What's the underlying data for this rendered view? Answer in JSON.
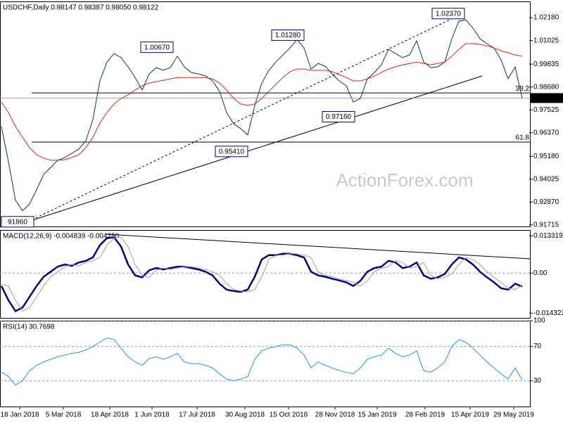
{
  "watermark": "ActionForex.com",
  "chart_data": [
    {
      "type": "line",
      "title": "USDCHF,Daily  0.98147 0.98387 0.98050 0.98122",
      "x": [
        0,
        5,
        10,
        15,
        20,
        25,
        30,
        35,
        40,
        45,
        50,
        55,
        60,
        65,
        70,
        75,
        80,
        85,
        90,
        95,
        100,
        105,
        110,
        115,
        120,
        125,
        130,
        135,
        140,
        145,
        150,
        155,
        160,
        165,
        170,
        175,
        180,
        185,
        190,
        195,
        200,
        205,
        210,
        215,
        220,
        225,
        230,
        235,
        240,
        245,
        250,
        255,
        260,
        265,
        270,
        275,
        280,
        285,
        290,
        295,
        300,
        305,
        310,
        315,
        320,
        325,
        330,
        335,
        340,
        345,
        350,
        355,
        360,
        365,
        370
      ],
      "series": [
        {
          "color": "#0b3d2e",
          "values": [
            0.9668,
            0.9491,
            0.9296,
            0.9243,
            0.9278,
            0.9349,
            0.9427,
            0.9462,
            0.9498,
            0.9512,
            0.9533,
            0.9555,
            0.9597,
            0.9704,
            0.9899,
            0.9994,
            1.0037,
            1.0016,
            0.997,
            0.9916,
            0.9853,
            0.9934,
            0.9966,
            0.9952,
            0.9966,
            1.0023,
            0.997,
            0.9941,
            0.9934,
            0.9924,
            0.9899,
            0.9846,
            0.9739,
            0.9682,
            0.9658,
            0.9626,
            0.9775,
            0.9888,
            0.9952,
            0.9994,
            1.003,
            1.0065,
            1.0108,
            1.0065,
            0.9959,
            0.9987,
            0.9973,
            0.9934,
            0.9899,
            0.9874,
            0.9792,
            0.981,
            0.9909,
            0.9941,
            0.998,
            1.0058,
            1.0037,
            1.0016,
            1.003,
            1.0101,
            0.9994,
            0.9966,
            0.997,
            0.9994,
            1.0112,
            1.02,
            1.0207,
            1.0165,
            1.0112,
            1.0087,
            1.0065,
            1.0005,
            0.9909,
            0.997,
            0.981
          ]
        },
        {
          "color": "#e0201b",
          "values": [
            0.9792,
            0.9739,
            0.9668,
            0.9615,
            0.9562,
            0.9526,
            0.9509,
            0.9498,
            0.9498,
            0.9501,
            0.9512,
            0.9526,
            0.9562,
            0.9615,
            0.9686,
            0.9739,
            0.9782,
            0.981,
            0.9828,
            0.9853,
            0.9874,
            0.9888,
            0.9895,
            0.9902,
            0.9909,
            0.9916,
            0.9916,
            0.9916,
            0.9916,
            0.9916,
            0.9909,
            0.9888,
            0.9853,
            0.981,
            0.9782,
            0.9775,
            0.9782,
            0.981,
            0.9846,
            0.9881,
            0.9916,
            0.9945,
            0.9959,
            0.9959,
            0.9952,
            0.9952,
            0.9952,
            0.9945,
            0.9931,
            0.9916,
            0.9899,
            0.9899,
            0.9909,
            0.9923,
            0.9941,
            0.9959,
            0.997,
            0.998,
            0.9987,
            0.9994,
            0.9987,
            0.998,
            0.9987,
            0.9994,
            1.0023,
            1.0058,
            1.0087,
            1.0087,
            1.0083,
            1.0076,
            1.0065,
            1.0051,
            1.0041,
            1.003,
            1.0023
          ]
        }
      ],
      "xlim": [
        -1,
        376
      ],
      "ylim": [
        0.9164,
        1.03
      ],
      "yticks": [
        {
          "value": 1.0218,
          "label": "1.02180"
        },
        {
          "value": 1.01025,
          "label": "1.01025"
        },
        {
          "value": 0.99835,
          "label": "0.99835"
        },
        {
          "value": 0.9868,
          "label": "0.98680"
        },
        {
          "value": 0.97525,
          "label": "0.97525"
        },
        {
          "value": 0.9637,
          "label": "0.96370"
        },
        {
          "value": 0.9518,
          "label": "0.95180"
        },
        {
          "value": 0.94025,
          "label": "0.94025"
        },
        {
          "value": 0.9287,
          "label": "0.92870"
        },
        {
          "value": 0.91715,
          "label": "0.91715"
        }
      ],
      "last": 0.98122,
      "levels": [
        {
          "label": "38.2",
          "y": 0.9838
        },
        {
          "label": "61.8",
          "y": 0.959
        }
      ],
      "annotations": [
        {
          "x": 23,
          "y": 0.9186,
          "label": "91860"
        },
        {
          "x": 122,
          "y": 1.0067,
          "label": "1.00670"
        },
        {
          "x": 175,
          "y": 0.9541,
          "label": "0.95410"
        },
        {
          "x": 215,
          "y": 1.0128,
          "label": "1.01280"
        },
        {
          "x": 251,
          "y": 0.9716,
          "label": "0.97160"
        },
        {
          "x": 329,
          "y": 1.0237,
          "label": "1.02370"
        }
      ]
    },
    {
      "type": "line",
      "title": "MACD(12,26,9) -0.004839 -0.004250",
      "x": [
        0,
        5,
        10,
        15,
        20,
        25,
        30,
        35,
        40,
        45,
        50,
        55,
        60,
        65,
        70,
        75,
        80,
        85,
        90,
        95,
        100,
        105,
        110,
        115,
        120,
        125,
        130,
        135,
        140,
        145,
        150,
        155,
        160,
        165,
        170,
        175,
        180,
        185,
        190,
        195,
        200,
        205,
        210,
        215,
        220,
        225,
        230,
        235,
        240,
        245,
        250,
        255,
        260,
        265,
        270,
        275,
        280,
        285,
        290,
        295,
        300,
        305,
        310,
        315,
        320,
        325,
        330,
        335,
        340,
        345,
        350,
        355,
        360,
        365,
        370
      ],
      "series": [
        {
          "color": "#000080",
          "values": [
            -0.0046,
            -0.0097,
            -0.0136,
            -0.0123,
            -0.0085,
            -0.0046,
            -0.0013,
            0.0005,
            0.0023,
            0.0031,
            0.0026,
            0.0038,
            0.0044,
            0.0056,
            0.01,
            0.0125,
            0.0128,
            0.0095,
            0.0031,
            -0.0008,
            -0.0015,
            0.001,
            0.0018,
            0.0013,
            0.0018,
            0.0023,
            0.0023,
            0.0018,
            0.0013,
            0.0005,
            -0.0008,
            -0.0038,
            -0.0059,
            -0.0064,
            -0.0067,
            -0.0059,
            -0.0013,
            0.0049,
            0.0064,
            0.0064,
            0.0069,
            0.0069,
            0.0064,
            0.0056,
            0.0005,
            -0.0008,
            -0.0013,
            -0.002,
            -0.0026,
            -0.0033,
            -0.0046,
            -0.0028,
            0.0005,
            0.0018,
            0.0023,
            0.0044,
            0.0038,
            0.0018,
            0.0023,
            0.0038,
            -0.0008,
            -0.002,
            -0.0015,
            -0.0003,
            0.0031,
            0.0056,
            0.0049,
            0.0031,
            0.0005,
            -0.0015,
            -0.0033,
            -0.0054,
            -0.0059,
            -0.0038,
            -0.0048
          ]
        },
        {
          "color": "#a0a0a0",
          "values": [
            -0.004,
            -0.0046,
            -0.0097,
            -0.0136,
            -0.0123,
            -0.0085,
            -0.0046,
            -0.0013,
            0.0005,
            0.0023,
            0.0031,
            0.0026,
            0.0038,
            0.0044,
            0.0056,
            0.01,
            0.0125,
            0.0128,
            0.0095,
            0.0031,
            -0.0008,
            -0.0015,
            0.001,
            0.0018,
            0.0013,
            0.0018,
            0.0023,
            0.0023,
            0.0018,
            0.0013,
            0.0005,
            -0.0008,
            -0.0038,
            -0.0059,
            -0.0064,
            -0.0067,
            -0.0059,
            -0.0013,
            0.0049,
            0.0064,
            0.0064,
            0.0069,
            0.0069,
            0.0064,
            0.0056,
            0.0005,
            -0.0008,
            -0.0013,
            -0.002,
            -0.0026,
            -0.0033,
            -0.0046,
            -0.0028,
            0.0005,
            0.0018,
            0.0023,
            0.0044,
            0.0038,
            0.0018,
            0.0023,
            0.0038,
            -0.0008,
            -0.002,
            -0.0015,
            -0.0003,
            0.0031,
            0.0056,
            0.0049,
            0.0031,
            0.0005,
            -0.0015,
            -0.0033,
            -0.0054,
            -0.0059,
            -0.0043
          ]
        }
      ],
      "xlim": [
        -1,
        376
      ],
      "ylim": [
        -0.016,
        0.0154
      ],
      "yticks": [
        0.013319,
        {
          "value": 0,
          "label": "0.00"
        },
        -0.014323
      ],
      "zero_line": true
    },
    {
      "type": "line",
      "title": "RSI(14) 30.7698",
      "x": [
        0,
        5,
        10,
        15,
        20,
        25,
        30,
        35,
        40,
        45,
        50,
        55,
        60,
        65,
        70,
        75,
        80,
        85,
        90,
        95,
        100,
        105,
        110,
        115,
        120,
        125,
        130,
        135,
        140,
        145,
        150,
        155,
        160,
        165,
        170,
        175,
        180,
        185,
        190,
        195,
        200,
        205,
        210,
        215,
        220,
        225,
        230,
        235,
        240,
        245,
        250,
        255,
        260,
        265,
        270,
        275,
        280,
        285,
        290,
        295,
        300,
        305,
        310,
        315,
        320,
        325,
        330,
        335,
        340,
        345,
        350,
        355,
        360,
        365,
        370
      ],
      "series": [
        {
          "color": "#1e90ff",
          "values": [
            40,
            35,
            25,
            30,
            42,
            48,
            52,
            55,
            58,
            60,
            62,
            63,
            66,
            70,
            75,
            80,
            78,
            68,
            58,
            52,
            48,
            56,
            58,
            55,
            58,
            62,
            52,
            50,
            50,
            48,
            45,
            38,
            32,
            30,
            32,
            35,
            55,
            65,
            68,
            70,
            72,
            72,
            68,
            60,
            45,
            52,
            48,
            45,
            42,
            40,
            38,
            45,
            55,
            58,
            60,
            68,
            62,
            58,
            60,
            65,
            42,
            40,
            45,
            52,
            70,
            78,
            75,
            68,
            60,
            52,
            45,
            38,
            32,
            45,
            30.7698
          ]
        }
      ],
      "xlim": [
        -1,
        376
      ],
      "ylim": [
        0,
        100
      ],
      "yticks": [
        100,
        70,
        30
      ],
      "grid": true,
      "xticks": [
        {
          "value": 13,
          "label": "18 Jan 2018"
        },
        {
          "value": 44,
          "label": "5 Mar 2018"
        },
        {
          "value": 77,
          "label": "18 Apr 2018"
        },
        {
          "value": 107,
          "label": "1 Jun 2018"
        },
        {
          "value": 139,
          "label": "17 Jul 2018"
        },
        {
          "value": 173,
          "label": "30 Aug 2018"
        },
        {
          "value": 204,
          "label": "15 Oct 2018"
        },
        {
          "value": 237,
          "label": "28 Nov 2018"
        },
        {
          "value": 267,
          "label": "15 Jan 2019"
        },
        {
          "value": 301,
          "label": "28 Feb 2019"
        },
        {
          "value": 333,
          "label": "15 Apr 2019"
        },
        {
          "value": 364,
          "label": "29 May 2019"
        }
      ]
    }
  ]
}
